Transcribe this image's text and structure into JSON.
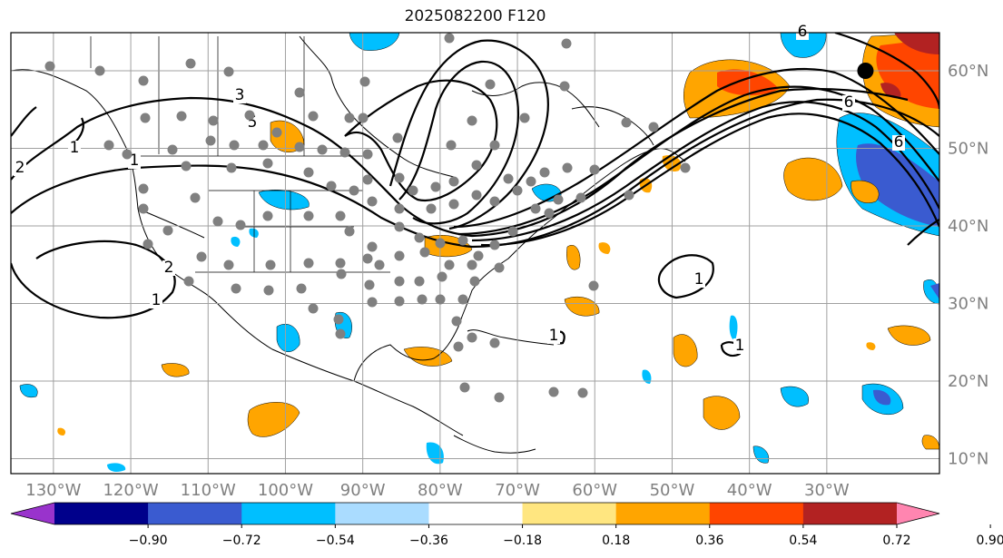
{
  "title": "2025082200 F120",
  "longitude_labels": [
    "130°W",
    "120°W",
    "110°W",
    "100°W",
    "90°W",
    "80°W",
    "70°W",
    "60°W",
    "50°W",
    "40°W",
    "30°W"
  ],
  "latitude_labels": [
    "60°N",
    "50°N",
    "40°N",
    "30°N",
    "20°N",
    "10°N"
  ],
  "colorbar": {
    "ticks": [
      "−0.90",
      "−0.72",
      "−0.54",
      "−0.36",
      "−0.18",
      "0.18",
      "0.36",
      "0.54",
      "0.72",
      "0.90"
    ],
    "colors": [
      "#9933cc",
      "#00008b",
      "#3a5bd0",
      "#00bfff",
      "#aadcff",
      "#ffffff",
      "#ffe680",
      "#ffa500",
      "#ff4500",
      "#b22222",
      "#ff85b0"
    ]
  },
  "contour_labels": [
    "1",
    "2",
    "3",
    "5",
    "6",
    "6",
    "1",
    "1",
    "1",
    "1",
    "2",
    "1",
    "6"
  ],
  "marker": {
    "lon": -25,
    "lat": 60,
    "color": "#000000"
  }
}
